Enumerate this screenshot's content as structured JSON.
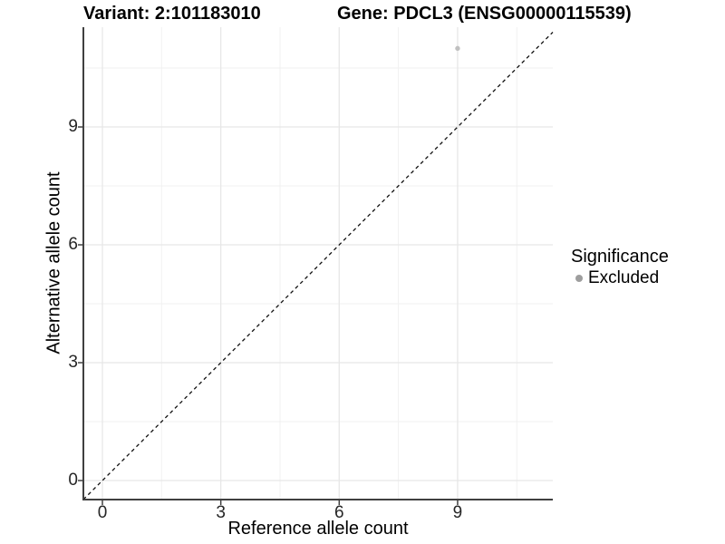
{
  "figure": {
    "title_left": "Variant: 2:101183010",
    "title_right": "Gene: PDCL3 (ENSG00000115539)"
  },
  "chart_data": {
    "type": "scatter",
    "xlabel": "Reference allele count",
    "ylabel": "Alternative allele count",
    "xlim": [
      -0.5,
      11.4
    ],
    "ylim": [
      -0.5,
      11.5
    ],
    "x_major_ticks": [
      0,
      3,
      6,
      9
    ],
    "y_major_ticks": [
      0,
      3,
      6,
      9
    ],
    "x_minor_gridlines": [
      1.5,
      4.5,
      7.5,
      10.5
    ],
    "y_minor_gridlines": [
      1.5,
      4.5,
      7.5,
      10.5
    ],
    "grid": {
      "major_color": "#e7e7e7",
      "minor_color": "#f1f1f1"
    },
    "axis_line_color": "#404040",
    "series": [
      {
        "name": "Excluded",
        "color": "#c0c0c0",
        "points": [
          {
            "x": 9,
            "y": 11
          }
        ]
      }
    ],
    "reference_line": {
      "type": "identity",
      "equation": "y = x",
      "style": "dashed",
      "color": "#111111"
    },
    "legend": {
      "title": "Significance",
      "position": "right",
      "items": [
        {
          "label": "Excluded",
          "color": "#9e9e9e"
        }
      ]
    }
  }
}
